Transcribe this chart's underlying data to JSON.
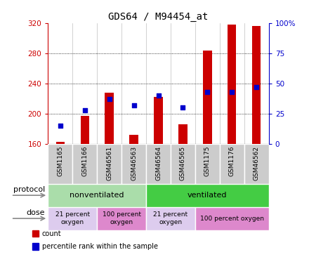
{
  "title": "GDS64 / M94454_at",
  "samples": [
    "GSM1165",
    "GSM1166",
    "GSM46561",
    "GSM46563",
    "GSM46564",
    "GSM46565",
    "GSM1175",
    "GSM1176",
    "GSM46562"
  ],
  "counts": [
    163,
    197,
    228,
    172,
    222,
    186,
    284,
    318,
    316
  ],
  "percentile_ranks": [
    15,
    28,
    37,
    32,
    40,
    30,
    43,
    43,
    47
  ],
  "ylim_left": [
    160,
    320
  ],
  "ylim_right": [
    0,
    100
  ],
  "yticks_left": [
    160,
    200,
    240,
    280,
    320
  ],
  "yticks_right": [
    0,
    25,
    50,
    75,
    100
  ],
  "bar_color": "#cc0000",
  "dot_color": "#0000cc",
  "grid_color": "#000000",
  "axis_color_left": "#cc0000",
  "axis_color_right": "#0000cc",
  "bg_color": "#ffffff",
  "sample_box_color": "#cccccc",
  "protocol_groups": [
    {
      "label": "nonventilated",
      "start": 0,
      "end": 4,
      "color": "#aaddaa"
    },
    {
      "label": "ventilated",
      "start": 4,
      "end": 9,
      "color": "#44cc44"
    }
  ],
  "dose_groups": [
    {
      "label": "21 percent\noxygen",
      "start": 0,
      "end": 2,
      "color": "#ddccee"
    },
    {
      "label": "100 percent\noxygen",
      "start": 2,
      "end": 4,
      "color": "#dd88cc"
    },
    {
      "label": "21 percent\noxygen",
      "start": 4,
      "end": 6,
      "color": "#ddccee"
    },
    {
      "label": "100 percent oxygen",
      "start": 6,
      "end": 9,
      "color": "#dd88cc"
    }
  ],
  "legend_items": [
    {
      "label": "count",
      "color": "#cc0000"
    },
    {
      "label": "percentile rank within the sample",
      "color": "#0000cc"
    }
  ]
}
